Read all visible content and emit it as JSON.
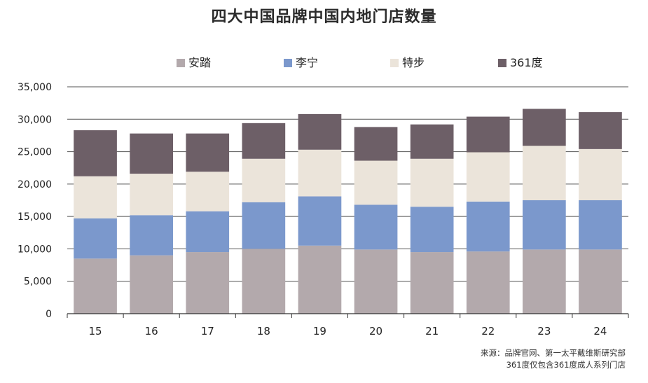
{
  "title": "四大中国品牌中国内地门店数量",
  "source_line": "来源：品牌官网、第一太平戴维斯研究部",
  "note_line": "361度仅包含361度成人系列门店",
  "colors": {
    "anta": "#b3a9ac",
    "lining": "#7b98cc",
    "xtep": "#ebe4da",
    "b361": "#6d5f67",
    "grid": "#555555",
    "text": "#222222"
  },
  "chart_data": {
    "type": "bar",
    "stacked": true,
    "title": "四大中国品牌中国内地门店数量",
    "xlabel": "",
    "ylabel": "",
    "categories": [
      "15",
      "16",
      "17",
      "18",
      "19",
      "20",
      "21",
      "22",
      "23",
      "24"
    ],
    "ylim": [
      0,
      35000
    ],
    "yticks": [
      0,
      5000,
      10000,
      15000,
      20000,
      25000,
      30000,
      35000
    ],
    "ytick_labels": [
      "0",
      "5,000",
      "10,000",
      "15,000",
      "20,000",
      "25,000",
      "30,000",
      "35,000"
    ],
    "grid": true,
    "legend_position": "top",
    "series": [
      {
        "name": "安踏",
        "color_key": "anta",
        "values": [
          8500,
          9000,
          9500,
          10000,
          10500,
          9900,
          9500,
          9600,
          9900,
          9900
        ]
      },
      {
        "name": "李宁",
        "color_key": "lining",
        "values": [
          6200,
          6200,
          6300,
          7200,
          7600,
          6900,
          7000,
          7700,
          7600,
          7600
        ]
      },
      {
        "name": "特步",
        "color_key": "xtep",
        "values": [
          6500,
          6400,
          6100,
          6700,
          7200,
          6800,
          7400,
          7600,
          8400,
          7900
        ]
      },
      {
        "name": "361度",
        "color_key": "b361",
        "values": [
          7100,
          6200,
          5900,
          5500,
          5500,
          5200,
          5300,
          5500,
          5700,
          5700
        ]
      }
    ]
  }
}
